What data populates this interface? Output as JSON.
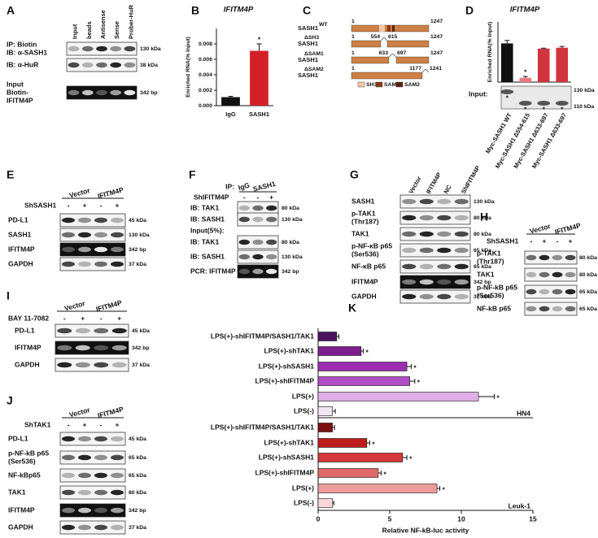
{
  "chart_data": [
    {
      "panel": "B",
      "type": "bar",
      "title": "IFITM4P",
      "ylabel": "Enriched RNA(% Input)",
      "categories": [
        "IgG",
        "SASH1"
      ],
      "values": [
        0.0011,
        0.0071
      ],
      "errors": [
        0.0001,
        0.0009
      ],
      "colors": [
        "#111111",
        "#d32027"
      ],
      "annotations": [
        null,
        "*"
      ],
      "ylim": [
        0,
        0.01
      ],
      "yticks": [
        {
          "value": 0,
          "label": "0.000"
        },
        {
          "value": 0.002,
          "label": "0.002"
        },
        {
          "value": 0.004,
          "label": "0.004"
        },
        {
          "value": 0.006,
          "label": "0.006"
        },
        {
          "value": 0.008,
          "label": "0.008"
        }
      ]
    },
    {
      "panel": "D",
      "type": "bar",
      "title": "IFITM4P",
      "ylabel": "Enriched RNA(% Input)",
      "categories": [
        "Myc-SASH1 WT",
        "Myc-SASH1 Δ554-615",
        "Myc-SASH1 Δ633-697",
        "Myc-SASH1 Δ633-697"
      ],
      "values": [
        0.9,
        0.1,
        0.78,
        0.8
      ],
      "errors": [
        0.07,
        0.03,
        0.01,
        0.03
      ],
      "colors": [
        "#111111",
        "#e87a80",
        "#d0353d",
        "#d0353d"
      ],
      "annotations": [
        null,
        "*",
        null,
        null
      ],
      "ylim": [
        0,
        1.4
      ]
    },
    {
      "panel": "K",
      "type": "barh",
      "xlabel": "Relative NF-kB-luc activity",
      "xlim": [
        0,
        15
      ],
      "xticks": [
        0,
        5,
        10,
        15
      ],
      "groups": [
        {
          "name": "HN4",
          "categories": [
            "LPS(+)-shIFITM4P/SASH1/TAK1",
            "LPS(+)-shTAK1",
            "LPS(+)-shSASH1",
            "LPS(+)-shIFITM4P",
            "LPS(+)",
            "LPS(-)"
          ],
          "values": [
            1.3,
            3.0,
            6.2,
            6.4,
            11.2,
            1.0
          ],
          "errors": [
            0.15,
            0.15,
            0.3,
            0.35,
            1.1,
            0.2
          ],
          "colors": [
            "#4a1460",
            "#7b1f8e",
            "#9b2fb0",
            "#b04cc4",
            "#e0aee6",
            "#f2e4f4"
          ],
          "annotations": [
            null,
            "*",
            "*",
            "*",
            "*",
            null
          ]
        },
        {
          "name": "Leuk-1",
          "categories": [
            "LPS(+)-shIFITM4P/SASH1/TAK1",
            "LPS(+)-shTAK1",
            "LPS(+)-shSASH1",
            "LPS(+)-shIFITM4P",
            "LPS(+)",
            "LPS(-)"
          ],
          "values": [
            1.0,
            3.4,
            5.9,
            4.2,
            8.3,
            1.0
          ],
          "errors": [
            0.15,
            0.2,
            0.3,
            0.2,
            0.2,
            0.1
          ],
          "colors": [
            "#7a1010",
            "#c01e1e",
            "#d43838",
            "#e06a6a",
            "#ec9c9c",
            "#f7d7d7"
          ],
          "annotations": [
            null,
            "*",
            "*",
            "*",
            "*",
            null
          ]
        }
      ]
    }
  ],
  "diagram": {
    "letter": "C",
    "constructs": [
      {
        "name": "SASH1",
        "tag": "WT",
        "start": "1",
        "end": "1247"
      },
      {
        "name": "SASH1",
        "tag": "ΔSH3",
        "start": "1",
        "end": "1247",
        "deletion": [
          "554",
          "615"
        ]
      },
      {
        "name": "SASH1",
        "tag": "ΔSAM1",
        "start": "1",
        "end": "1247",
        "deletion": [
          "633",
          "697"
        ]
      },
      {
        "name": "SASH1",
        "tag": "ΔSAM2",
        "start": "1",
        "deletion": [
          "1177",
          "1241"
        ]
      }
    ],
    "legend": [
      "SH3",
      "SAM1",
      "SAM2"
    ]
  },
  "blots": {
    "A": {
      "letter": "A",
      "lanes": [
        "Input",
        "beads",
        "Antisense",
        "Sense",
        "Prober-HuR"
      ],
      "rows": [
        {
          "label": [
            "IP: Biotin",
            "IB: α-SASH1"
          ],
          "size": "130 kDa"
        },
        {
          "label": [
            "IB: α-HuR"
          ],
          "size": "38 kDa"
        },
        {
          "label": [
            "Input",
            "Biotin-",
            "IFITM4P"
          ],
          "size": "342 bp"
        }
      ]
    },
    "D": {
      "label": "Input:",
      "sizes": [
        "130 kDa",
        "110 kDa"
      ],
      "marker": "*"
    },
    "E": {
      "letter": "E",
      "groups": [
        "Vector",
        "IFITM4P"
      ],
      "treatment": "ShSASH1",
      "signs": [
        "-",
        "+",
        "-",
        "+"
      ],
      "rows": [
        {
          "label": [
            "PD-L1"
          ],
          "size": "45 kDa"
        },
        {
          "label": [
            "SASH1"
          ],
          "size": "130 kDa"
        },
        {
          "label": [
            "IFITM4P"
          ],
          "size": "342 bp"
        },
        {
          "label": [
            "GAPDH"
          ],
          "size": "37 kDa"
        }
      ]
    },
    "F": {
      "letter": "F",
      "ip": "IP:",
      "groups": [
        "IgG",
        "SASH1"
      ],
      "treatment": "ShIFITM4P",
      "signs": [
        "-",
        "-",
        "+"
      ],
      "rows": [
        {
          "label": [
            "IB: TAK1"
          ],
          "size": "80 kDa"
        },
        {
          "label": [
            "IB: SASH1"
          ],
          "size": "130 kDa"
        },
        {
          "label": [
            "Input(5%):"
          ]
        },
        {
          "label": [
            "IB: TAK1"
          ],
          "size": "80 kDa"
        },
        {
          "label": [
            "IB: SASH1"
          ],
          "size": "130 kDa"
        },
        {
          "label": [
            "PCR: IFITM4P"
          ],
          "size": "342 bp"
        }
      ]
    },
    "G": {
      "letter": "G",
      "lanes": [
        "Vector",
        "IFITM4P",
        "NC",
        "ShIFITM4P"
      ],
      "rows": [
        {
          "label": [
            "SASH1"
          ],
          "size": "130 kDa"
        },
        {
          "label": [
            "p-TAK1",
            "(Thr187)"
          ],
          "size": "80 kDa"
        },
        {
          "label": [
            "TAK1"
          ],
          "size": "80 kDa"
        },
        {
          "label": [
            "p-NF-κB p65",
            "(Ser536)"
          ],
          "size": "65 kDa"
        },
        {
          "label": [
            "NF-κB p65"
          ],
          "size": "65 kDa"
        },
        {
          "label": [
            "IFITM4P"
          ],
          "size": "342 bp"
        },
        {
          "label": [
            "GAPDH"
          ],
          "size": "37 kDa"
        }
      ]
    },
    "H": {
      "letter": "H",
      "groups": [
        "Vector",
        "IFITM4P"
      ],
      "treatment": "ShSASH1",
      "signs": [
        "-",
        "+",
        "-",
        "+"
      ],
      "rows": [
        {
          "label": [
            "p-TAK1",
            "(Thr187)"
          ],
          "size": "80 kDa"
        },
        {
          "label": [
            "TAK1"
          ],
          "size": "80 kDa"
        },
        {
          "label": [
            "p-NF-kB p65",
            "(Ser536)"
          ],
          "size": "65 kDa"
        },
        {
          "label": [
            "NF-kB p65"
          ],
          "size": "65 kDa"
        }
      ]
    },
    "I": {
      "letter": "I",
      "groups": [
        "Vector",
        "IFITM4P"
      ],
      "treatment": "BAY 11-7082",
      "signs": [
        "-",
        "+",
        "-",
        "+"
      ],
      "rows": [
        {
          "label": [
            "PD-L1"
          ],
          "size": "45 kDa"
        },
        {
          "label": [
            "IFITM4P"
          ],
          "size": "342 bp"
        },
        {
          "label": [
            "GAPDH"
          ],
          "size": "37 kDa"
        }
      ]
    },
    "J": {
      "letter": "J",
      "groups": [
        "Vector",
        "IFITM4P"
      ],
      "treatment": "ShTAK1",
      "signs": [
        "-",
        "+",
        "-",
        "+"
      ],
      "rows": [
        {
          "label": [
            "PD-L1"
          ],
          "size": "45 kDa"
        },
        {
          "label": [
            "p-NF-kB p65",
            "(Ser536)"
          ],
          "size": "65 kDa"
        },
        {
          "label": [
            "NF-kBp65"
          ],
          "size": "65 kDa"
        },
        {
          "label": [
            "TAK1"
          ],
          "size": "80 kDa"
        },
        {
          "label": [
            "IFITM4P"
          ],
          "size": "342 bp"
        },
        {
          "label": [
            "GAPDH"
          ],
          "size": "37 kDa"
        }
      ]
    }
  }
}
